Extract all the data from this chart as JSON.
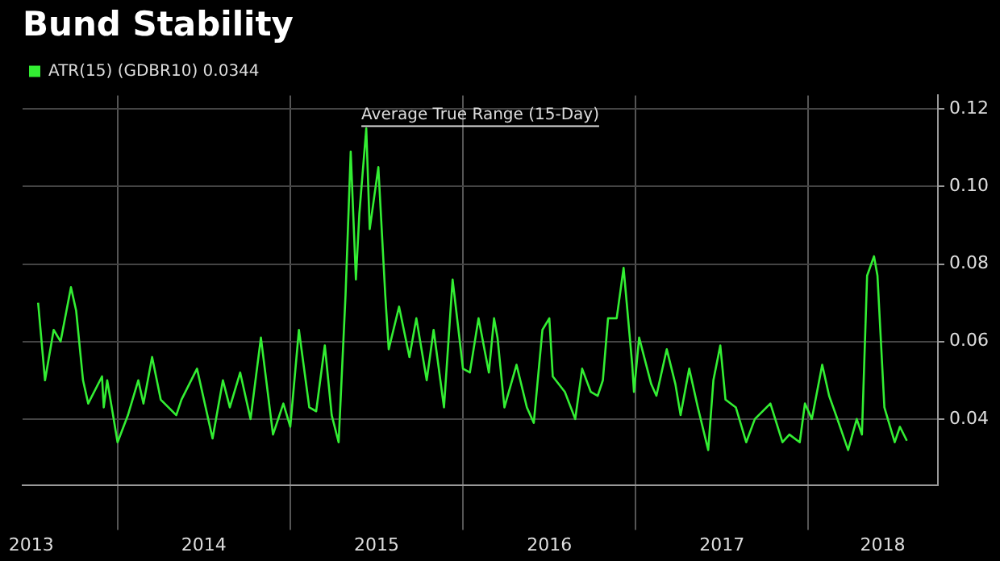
{
  "chart_data": {
    "type": "line",
    "title": "Bund Stability",
    "annotations": [
      "Average True Range (15-Day)"
    ],
    "x": [
      2013.54,
      2013.58,
      2013.63,
      2013.67,
      2013.73,
      2013.76,
      2013.8,
      2013.83,
      2013.91,
      2013.92,
      2013.94,
      2014.0,
      2014.06,
      2014.12,
      2014.15,
      2014.2,
      2014.25,
      2014.34,
      2014.37,
      2014.46,
      2014.55,
      2014.61,
      2014.65,
      2014.71,
      2014.77,
      2014.83,
      2014.9,
      2014.96,
      2015.0,
      2015.05,
      2015.11,
      2015.15,
      2015.2,
      2015.24,
      2015.28,
      2015.32,
      2015.35,
      2015.38,
      2015.4,
      2015.44,
      2015.46,
      2015.51,
      2015.55,
      2015.57,
      2015.63,
      2015.69,
      2015.73,
      2015.79,
      2015.83,
      2015.89,
      2015.94,
      2016.0,
      2016.04,
      2016.09,
      2016.15,
      2016.18,
      2016.2,
      2016.24,
      2016.31,
      2016.37,
      2016.41,
      2016.46,
      2016.5,
      2016.52,
      2016.59,
      2016.65,
      2016.69,
      2016.74,
      2016.78,
      2016.81,
      2016.84,
      2016.89,
      2016.93,
      2016.98,
      2016.99,
      2017.02,
      2017.09,
      2017.12,
      2017.18,
      2017.23,
      2017.26,
      2017.31,
      2017.36,
      2017.42,
      2017.45,
      2017.49,
      2017.52,
      2017.58,
      2017.64,
      2017.69,
      2017.78,
      2017.85,
      2017.89,
      2017.95,
      2017.98,
      2018.02,
      2018.08,
      2018.12,
      2018.16,
      2018.23,
      2018.28,
      2018.31,
      2018.34,
      2018.38,
      2018.4,
      2018.44,
      2018.5,
      2018.53,
      2018.57
    ],
    "series": [
      {
        "name": "ATR(15) (GDBR10) 0.0344",
        "color": "#33ee33",
        "values": [
          0.07,
          0.05,
          0.063,
          0.06,
          0.074,
          0.068,
          0.05,
          0.044,
          0.051,
          0.043,
          0.05,
          0.034,
          0.041,
          0.05,
          0.044,
          0.056,
          0.045,
          0.041,
          0.045,
          0.053,
          0.035,
          0.05,
          0.043,
          0.052,
          0.04,
          0.061,
          0.036,
          0.044,
          0.038,
          0.063,
          0.043,
          0.042,
          0.059,
          0.041,
          0.034,
          0.072,
          0.109,
          0.076,
          0.093,
          0.115,
          0.089,
          0.105,
          0.072,
          0.058,
          0.069,
          0.056,
          0.066,
          0.05,
          0.063,
          0.043,
          0.076,
          0.053,
          0.052,
          0.066,
          0.052,
          0.066,
          0.061,
          0.043,
          0.054,
          0.043,
          0.039,
          0.063,
          0.066,
          0.051,
          0.047,
          0.04,
          0.053,
          0.047,
          0.046,
          0.05,
          0.066,
          0.066,
          0.079,
          0.054,
          0.047,
          0.061,
          0.049,
          0.046,
          0.058,
          0.049,
          0.041,
          0.053,
          0.043,
          0.032,
          0.05,
          0.059,
          0.045,
          0.043,
          0.034,
          0.04,
          0.044,
          0.034,
          0.036,
          0.034,
          0.044,
          0.04,
          0.054,
          0.046,
          0.041,
          0.032,
          0.04,
          0.036,
          0.077,
          0.082,
          0.077,
          0.043,
          0.034,
          0.038,
          0.0344
        ]
      }
    ],
    "xlim": [
      2013.45,
      2018.75
    ],
    "xticks": [
      {
        "value": 2013.5,
        "label": "2013"
      },
      {
        "value": 2014,
        "label": null
      },
      {
        "value": 2014.5,
        "label": "2014"
      },
      {
        "value": 2015,
        "label": null
      },
      {
        "value": 2015.5,
        "label": "2015"
      },
      {
        "value": 2016,
        "label": null
      },
      {
        "value": 2016.5,
        "label": "2016"
      },
      {
        "value": 2017,
        "label": null
      },
      {
        "value": 2017.5,
        "label": "2017"
      },
      {
        "value": 2018,
        "label": null
      },
      {
        "value": 2018.43,
        "label": "2018"
      }
    ],
    "ylim": [
      0.023,
      0.1235
    ],
    "yticks": [
      {
        "value": 0.04,
        "label": "0.04"
      },
      {
        "value": 0.06,
        "label": "0.06"
      },
      {
        "value": 0.08,
        "label": "0.08"
      },
      {
        "value": 0.1,
        "label": "0.10"
      },
      {
        "value": 0.12,
        "label": "0.12"
      }
    ],
    "grid": true,
    "legend": "top left",
    "marker": "none",
    "line_style": "solid"
  }
}
